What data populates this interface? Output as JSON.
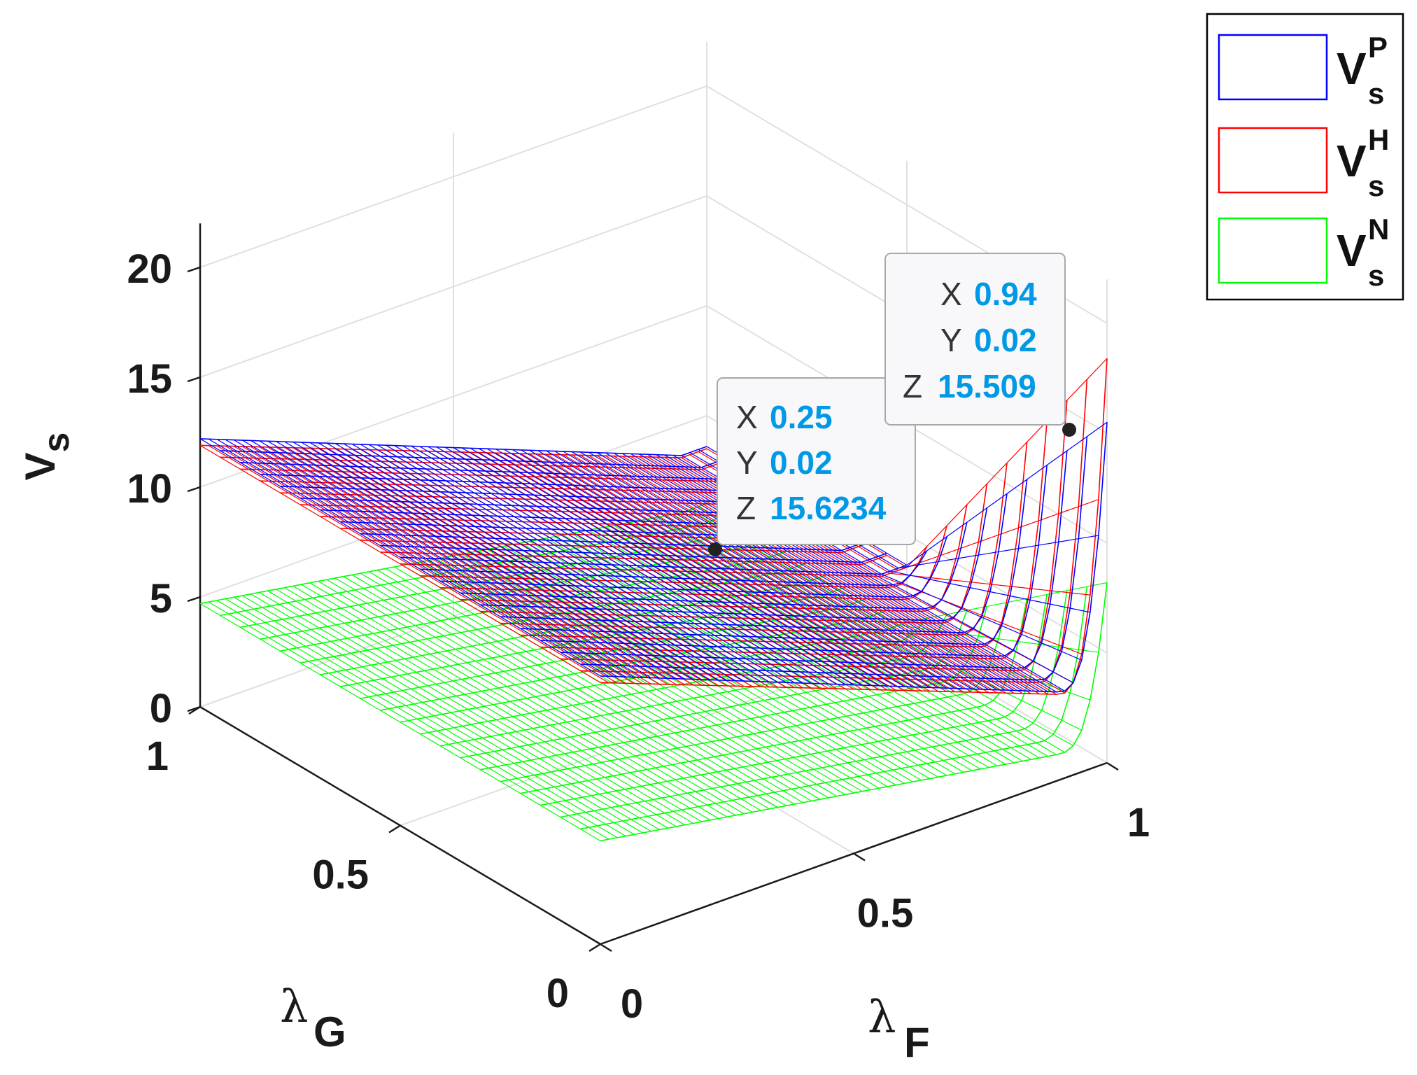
{
  "chart_data": {
    "type": "surface",
    "x_axis": {
      "label": "λ",
      "label_sub": "F",
      "ticks": [
        "0",
        "0.5",
        "1"
      ],
      "range": [
        0,
        1
      ]
    },
    "y_axis": {
      "label": "λ",
      "label_sub": "G",
      "ticks": [
        "0",
        "0.5",
        "1"
      ],
      "range": [
        0,
        1
      ]
    },
    "z_axis": {
      "label": "V",
      "label_sub": "s",
      "ticks": [
        "0",
        "5",
        "10",
        "15",
        "20"
      ],
      "range": [
        0,
        22
      ]
    },
    "grid": true,
    "legend_position": "top-right",
    "series": [
      {
        "name": "V",
        "sup": "P",
        "sub": "s",
        "color": "#0000ff",
        "description_values": {
          "base_at_x0": 12.2,
          "min": 3.6,
          "edge_at_x1_y0": 15.5
        }
      },
      {
        "name": "V",
        "sup": "H",
        "sub": "s",
        "color": "#ff0000",
        "description_values": {
          "base_at_x0": 11.9,
          "min": 3.5,
          "edge_at_x1_y0": 18.4
        }
      },
      {
        "name": "V",
        "sup": "N",
        "sub": "s",
        "color": "#00ff00",
        "description_values": {
          "base_at_x0": 4.7,
          "min": 1.0,
          "edge_at_x1_y0": 8.2
        }
      }
    ],
    "datatips": [
      {
        "x_key": "X",
        "x": "0.25",
        "y_key": "Y",
        "y": "0.02",
        "z_key": "Z",
        "z": "15.6234"
      },
      {
        "x_key": "X",
        "x": "0.94",
        "y_key": "Y",
        "y": "0.02",
        "z_key": "Z",
        "z": "15.509"
      }
    ]
  },
  "colors": {
    "datatip_value": "#0099e6",
    "axis": "#1a1a1a",
    "grid": "#e0e0e0"
  }
}
